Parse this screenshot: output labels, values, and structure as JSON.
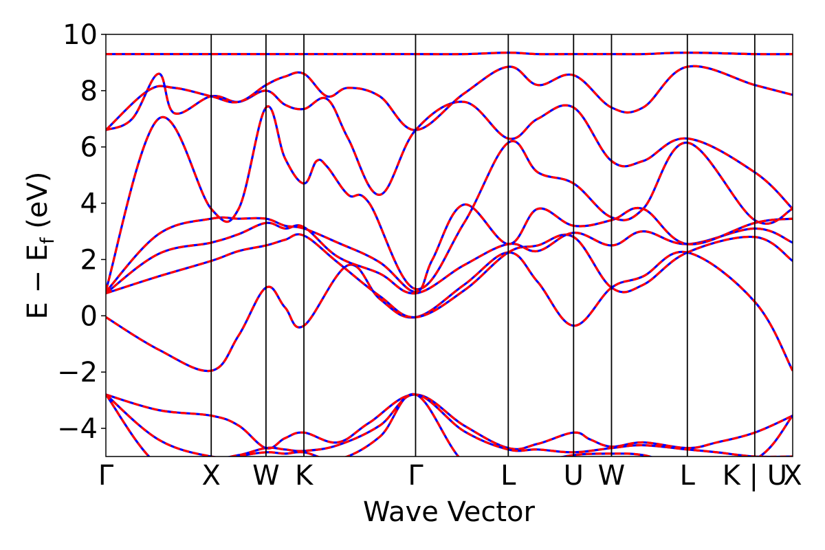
{
  "chart_data": {
    "type": "line",
    "title": "",
    "xlabel": "Wave Vector",
    "ylabel_main": "E − E",
    "ylabel_sub": "f",
    "ylabel_unit": " (eV)",
    "ylim": [
      -5,
      10
    ],
    "xlim": [
      0,
      6.52
    ],
    "yticks": [
      -4,
      -2,
      0,
      2,
      4,
      6,
      8,
      10
    ],
    "ytick_labels": [
      "−4",
      "−2",
      "0",
      "2",
      "4",
      "6",
      "8",
      "10"
    ],
    "kpoints": [
      {
        "label": "Γ",
        "x": 0.0
      },
      {
        "label": "X",
        "x": 1.0
      },
      {
        "label": "W",
        "x": 1.52
      },
      {
        "label": "K",
        "x": 1.88
      },
      {
        "label": "Γ",
        "x": 2.94
      },
      {
        "label": "L",
        "x": 3.82
      },
      {
        "label": "U",
        "x": 4.44
      },
      {
        "label": "W",
        "x": 4.8
      },
      {
        "label": "L",
        "x": 5.52
      },
      {
        "label": "K | U",
        "x": 6.16
      },
      {
        "label": "X",
        "x": 6.52
      }
    ],
    "grid": false,
    "line_colors": {
      "reference": "#0000ff",
      "overlay": "#ff0000"
    },
    "bands": [
      {
        "name": "",
        "x": [
          0,
          0.5,
          1.0,
          1.26,
          1.52,
          1.7,
          1.88,
          2.2,
          2.5,
          2.94,
          3.4,
          3.82,
          4.1,
          4.44,
          4.6,
          4.8,
          5.1,
          5.52,
          5.8,
          6.16,
          6.52
        ],
        "y": [
          -2.8,
          -3.35,
          -3.55,
          -3.9,
          -4.7,
          -4.35,
          -4.15,
          -4.5,
          -3.8,
          -2.8,
          -3.9,
          -4.7,
          -4.55,
          -4.15,
          -4.4,
          -4.65,
          -4.5,
          -4.7,
          -4.5,
          -4.15,
          -3.55
        ]
      },
      {
        "name": "",
        "x": [
          0,
          0.5,
          1.0,
          1.26,
          1.52,
          1.7,
          1.88,
          2.2,
          2.6,
          2.94,
          3.4,
          3.82,
          4.1,
          4.44,
          4.8,
          5.1,
          5.52,
          5.8,
          6.16,
          6.52
        ],
        "y": [
          -2.8,
          -4.4,
          -5.0,
          -4.95,
          -4.7,
          -4.75,
          -4.8,
          -4.6,
          -3.9,
          -2.8,
          -4.1,
          -4.75,
          -4.75,
          -4.85,
          -4.7,
          -4.6,
          -4.75,
          -4.85,
          -5.0,
          -5.0
        ]
      },
      {
        "name": "",
        "x": [
          0,
          0.5,
          1.0,
          1.26,
          1.52,
          1.7,
          1.88,
          2.2,
          2.6,
          2.94,
          3.4,
          3.82,
          4.1,
          4.44,
          4.8,
          5.1,
          5.52,
          6.16,
          6.52
        ],
        "y": [
          -2.8,
          -5.3,
          -5.3,
          -5.0,
          -4.85,
          -4.9,
          -4.85,
          -5.1,
          -4.3,
          -2.8,
          -5.2,
          -5.3,
          -5.2,
          -4.95,
          -4.9,
          -4.95,
          -5.3,
          -5.1,
          -3.55
        ]
      },
      {
        "name": "",
        "x": [
          0,
          0.5,
          1.0,
          1.26,
          1.52,
          1.7,
          1.88,
          2.3,
          2.6,
          2.94,
          3.4,
          3.82,
          4.1,
          4.44,
          4.8,
          5.1,
          5.52,
          6.16,
          6.52
        ],
        "y": [
          -0.05,
          -1.2,
          -1.95,
          -0.7,
          1.0,
          0.3,
          -0.35,
          1.8,
          0.6,
          -0.05,
          1.1,
          2.25,
          1.2,
          -0.35,
          1.0,
          1.4,
          2.25,
          0.5,
          -1.95
        ]
      },
      {
        "name": "",
        "x": [
          0,
          0.5,
          1.0,
          1.26,
          1.52,
          1.7,
          1.88,
          2.2,
          2.6,
          2.94,
          3.4,
          3.82,
          4.1,
          4.44,
          4.8,
          5.1,
          5.52,
          6.16,
          6.52
        ],
        "y": [
          0.8,
          1.4,
          1.95,
          2.3,
          2.5,
          2.7,
          2.85,
          1.9,
          0.7,
          -0.05,
          0.9,
          2.25,
          2.5,
          2.8,
          1.0,
          1.1,
          2.25,
          2.8,
          1.95
        ]
      },
      {
        "name": "",
        "x": [
          0,
          0.5,
          1.0,
          1.26,
          1.52,
          1.7,
          1.88,
          2.2,
          2.6,
          2.94,
          3.4,
          3.82,
          4.1,
          4.44,
          4.8,
          5.1,
          5.52,
          6.16,
          6.52
        ],
        "y": [
          0.8,
          2.2,
          2.6,
          2.9,
          3.3,
          3.1,
          3.15,
          2.1,
          1.5,
          0.8,
          1.8,
          2.55,
          2.3,
          2.95,
          2.5,
          3.0,
          2.55,
          3.1,
          2.6
        ]
      },
      {
        "name": "",
        "x": [
          0,
          0.5,
          1.0,
          1.26,
          1.52,
          1.7,
          1.88,
          2.2,
          2.6,
          2.94,
          3.1,
          3.4,
          3.82,
          4.1,
          4.44,
          4.8,
          5.1,
          5.52,
          6.16,
          6.52
        ],
        "y": [
          0.85,
          2.9,
          3.45,
          3.45,
          3.45,
          3.2,
          3.1,
          2.6,
          1.9,
          0.85,
          2.0,
          3.95,
          2.55,
          3.8,
          3.2,
          3.4,
          3.8,
          2.55,
          3.3,
          3.45
        ]
      },
      {
        "name": "",
        "x": [
          0,
          0.5,
          1.0,
          1.26,
          1.52,
          1.7,
          1.88,
          2.0,
          2.1,
          2.3,
          2.5,
          2.94,
          3.4,
          3.82,
          4.1,
          4.44,
          4.8,
          5.1,
          5.52,
          6.16,
          6.52
        ],
        "y": [
          0.9,
          7.0,
          3.8,
          3.8,
          7.4,
          5.6,
          4.7,
          5.5,
          5.3,
          4.3,
          4.0,
          0.95,
          3.3,
          6.15,
          5.1,
          4.7,
          3.5,
          3.8,
          6.15,
          3.4,
          3.8
        ]
      },
      {
        "name": "",
        "x": [
          0,
          0.25,
          0.5,
          0.65,
          1.0,
          1.26,
          1.52,
          1.7,
          1.88,
          2.1,
          2.3,
          2.6,
          2.94,
          3.4,
          3.82,
          4.1,
          4.44,
          4.8,
          5.1,
          5.52,
          6.16,
          6.52
        ],
        "y": [
          6.6,
          7.0,
          8.6,
          7.2,
          7.8,
          7.6,
          8.0,
          7.5,
          7.35,
          7.7,
          6.3,
          4.3,
          6.6,
          7.6,
          6.3,
          7.0,
          7.4,
          5.5,
          5.5,
          6.3,
          5.1,
          3.8
        ]
      },
      {
        "name": "",
        "x": [
          0,
          0.4,
          0.65,
          1.0,
          1.26,
          1.52,
          1.7,
          1.88,
          2.1,
          2.3,
          2.6,
          2.94,
          3.4,
          3.82,
          4.1,
          4.44,
          4.8,
          5.1,
          5.52,
          6.16,
          6.52
        ],
        "y": [
          6.6,
          8.0,
          8.1,
          7.8,
          7.6,
          8.2,
          8.5,
          8.6,
          7.8,
          8.1,
          7.8,
          6.6,
          7.9,
          8.85,
          8.2,
          8.55,
          7.4,
          7.4,
          8.85,
          8.2,
          7.85
        ]
      },
      {
        "name": "",
        "x": [
          0,
          0.5,
          1.0,
          1.26,
          1.52,
          1.88,
          2.3,
          2.6,
          2.94,
          3.4,
          3.82,
          4.1,
          4.44,
          4.8,
          5.1,
          5.52,
          6.16,
          6.52
        ],
        "y": [
          9.3,
          9.3,
          9.3,
          9.3,
          9.3,
          9.3,
          9.3,
          9.3,
          9.3,
          9.3,
          9.35,
          9.3,
          9.3,
          9.3,
          9.3,
          9.35,
          9.3,
          9.3
        ]
      }
    ]
  }
}
